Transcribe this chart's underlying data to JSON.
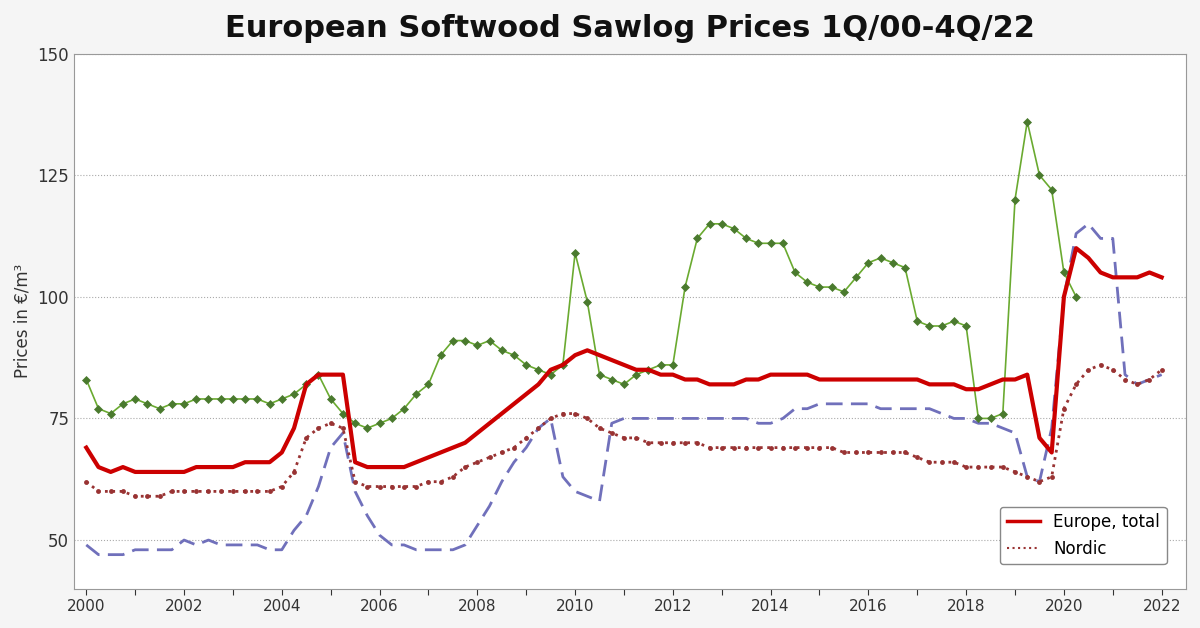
{
  "title": "European Softwood Sawlog Prices 1Q/00-4Q/22",
  "ylabel": "Prices in €/m³",
  "ylim": [
    40,
    150
  ],
  "yticks": [
    50,
    75,
    100,
    125,
    150
  ],
  "background_color": "#f5f5f5",
  "plot_background": "#ffffff",
  "grid_color": "#aaaaaa",
  "grid_style": "dotted",
  "title_fontsize": 22,
  "label_fontsize": 12,
  "europe_color": "#cc0000",
  "nordic_color": "#993333",
  "baltic_color": "#4a7a2e",
  "dashed_color": "#7070bb",
  "europe_total": [
    69,
    65,
    64,
    65,
    64,
    64,
    64,
    64,
    64,
    65,
    65,
    65,
    65,
    66,
    66,
    66,
    68,
    73,
    82,
    84,
    84,
    84,
    66,
    65,
    65,
    65,
    65,
    66,
    67,
    68,
    69,
    70,
    72,
    74,
    76,
    78,
    80,
    82,
    85,
    86,
    88,
    89,
    88,
    87,
    86,
    85,
    85,
    84,
    84,
    83,
    83,
    82,
    82,
    82,
    83,
    83,
    84,
    84,
    84,
    84,
    83,
    83,
    83,
    83,
    83,
    83,
    83,
    83,
    83,
    82,
    82,
    82,
    81,
    81,
    82,
    83,
    83,
    84,
    71,
    68,
    100,
    110,
    108,
    105,
    104,
    104,
    104,
    105,
    104
  ],
  "nordic": [
    62,
    60,
    60,
    60,
    59,
    59,
    59,
    60,
    60,
    60,
    60,
    60,
    60,
    60,
    60,
    60,
    61,
    64,
    71,
    73,
    74,
    73,
    62,
    61,
    61,
    61,
    61,
    61,
    62,
    62,
    63,
    65,
    66,
    67,
    68,
    69,
    71,
    73,
    75,
    76,
    76,
    75,
    73,
    72,
    71,
    71,
    70,
    70,
    70,
    70,
    70,
    69,
    69,
    69,
    69,
    69,
    69,
    69,
    69,
    69,
    69,
    69,
    68,
    68,
    68,
    68,
    68,
    68,
    67,
    66,
    66,
    66,
    65,
    65,
    65,
    65,
    64,
    63,
    62,
    63,
    77,
    82,
    85,
    86,
    85,
    83,
    82,
    83,
    85
  ],
  "baltic_cee": [
    83,
    77,
    76,
    78,
    79,
    78,
    77,
    78,
    78,
    79,
    79,
    79,
    79,
    79,
    79,
    78,
    79,
    80,
    82,
    84,
    79,
    76,
    74,
    73,
    74,
    75,
    77,
    80,
    82,
    88,
    91,
    91,
    90,
    91,
    89,
    88,
    86,
    85,
    84,
    86,
    109,
    99,
    84,
    83,
    82,
    84,
    85,
    86,
    86,
    102,
    112,
    115,
    115,
    114,
    112,
    111,
    111,
    111,
    105,
    103,
    102,
    102,
    101,
    104,
    107,
    108,
    107,
    106,
    95,
    94,
    94,
    95,
    94,
    75,
    75,
    76,
    120,
    136,
    125,
    122,
    105,
    100
  ],
  "dashed_series": [
    49,
    47,
    47,
    47,
    48,
    48,
    48,
    48,
    50,
    49,
    50,
    49,
    49,
    49,
    49,
    48,
    48,
    52,
    55,
    61,
    69,
    72,
    60,
    55,
    51,
    49,
    49,
    48,
    48,
    48,
    48,
    49,
    53,
    57,
    62,
    66,
    69,
    73,
    75,
    63,
    60,
    59,
    58,
    74,
    75,
    75,
    75,
    75,
    75,
    75,
    75,
    75,
    75,
    75,
    75,
    74,
    74,
    75,
    77,
    77,
    78,
    78,
    78,
    78,
    78,
    77,
    77,
    77,
    77,
    77,
    76,
    75,
    75,
    74,
    74,
    73,
    72,
    63,
    62,
    73,
    100,
    113,
    115,
    112,
    112,
    84,
    82,
    83,
    84
  ]
}
